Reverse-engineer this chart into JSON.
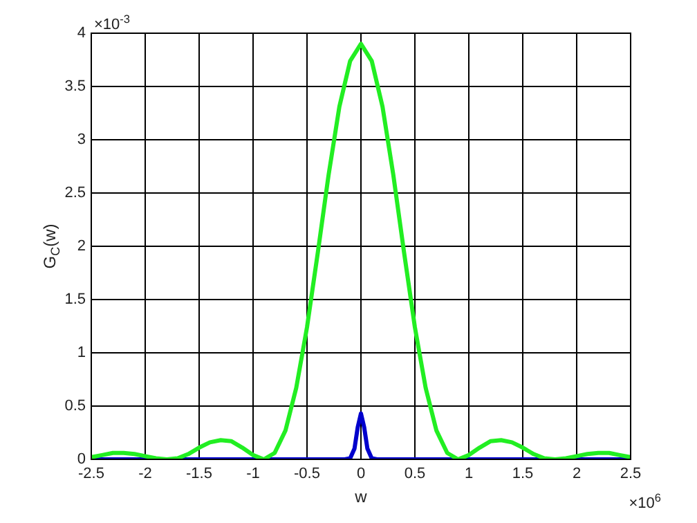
{
  "chart_data": {
    "type": "line",
    "xlabel": "w",
    "ylabel": "G$_{C}$(w)",
    "annotations": [
      "×10$^{-3}$",
      "×10$^{6}$"
    ],
    "xlim": [
      -2.5,
      2.5
    ],
    "ylim": [
      0,
      4
    ],
    "xticks": [
      -2.5,
      -2,
      -1.5,
      -1,
      -0.5,
      0,
      0.5,
      1,
      1.5,
      2,
      2.5
    ],
    "yticks": [
      0,
      0.5,
      1,
      1.5,
      2,
      2.5,
      3,
      3.5,
      4
    ],
    "grid": true,
    "legend": false,
    "marker": "none",
    "line_style": "solid",
    "series": [
      {
        "color": "#22ee22",
        "x": [
          -2.5,
          -2.4,
          -2.3,
          -2.2,
          -2.1,
          -2,
          -1.9,
          -1.8,
          -1.7,
          -1.6,
          -1.5,
          -1.4,
          -1.3,
          -1.2,
          -1.1,
          -1,
          -0.9,
          -0.8,
          -0.7,
          -0.6,
          -0.5,
          -0.4,
          -0.3,
          -0.2,
          -0.1,
          0,
          0.1,
          0.2,
          0.3,
          0.4,
          0.5,
          0.6,
          0.7,
          0.8,
          0.9,
          1,
          1.1,
          1.2,
          1.3,
          1.4,
          1.5,
          1.6,
          1.7,
          1.8,
          1.9,
          2,
          2.1,
          2.2,
          2.3,
          2.4,
          2.5
        ],
        "values": [
          0.02,
          0.04,
          0.06,
          0.06,
          0.05,
          0.03,
          0.01,
          0,
          0.01,
          0.05,
          0.11,
          0.16,
          0.18,
          0.17,
          0.11,
          0.04,
          0,
          0.06,
          0.27,
          0.67,
          1.24,
          1.94,
          2.67,
          3.31,
          3.74,
          3.9,
          3.74,
          3.31,
          2.67,
          1.94,
          1.24,
          0.67,
          0.27,
          0.06,
          0,
          0.04,
          0.11,
          0.17,
          0.18,
          0.16,
          0.11,
          0.05,
          0.01,
          0,
          0.01,
          0.03,
          0.05,
          0.06,
          0.06,
          0.04,
          0.02
        ]
      },
      {
        "color": "#0000cc",
        "x": [
          -2.5,
          -0.15,
          -0.1,
          -0.06,
          -0.03,
          0,
          0.03,
          0.06,
          0.1,
          0.15,
          2.5
        ],
        "values": [
          0,
          0,
          0.01,
          0.1,
          0.3,
          0.43,
          0.3,
          0.1,
          0.01,
          0,
          0
        ]
      }
    ]
  }
}
